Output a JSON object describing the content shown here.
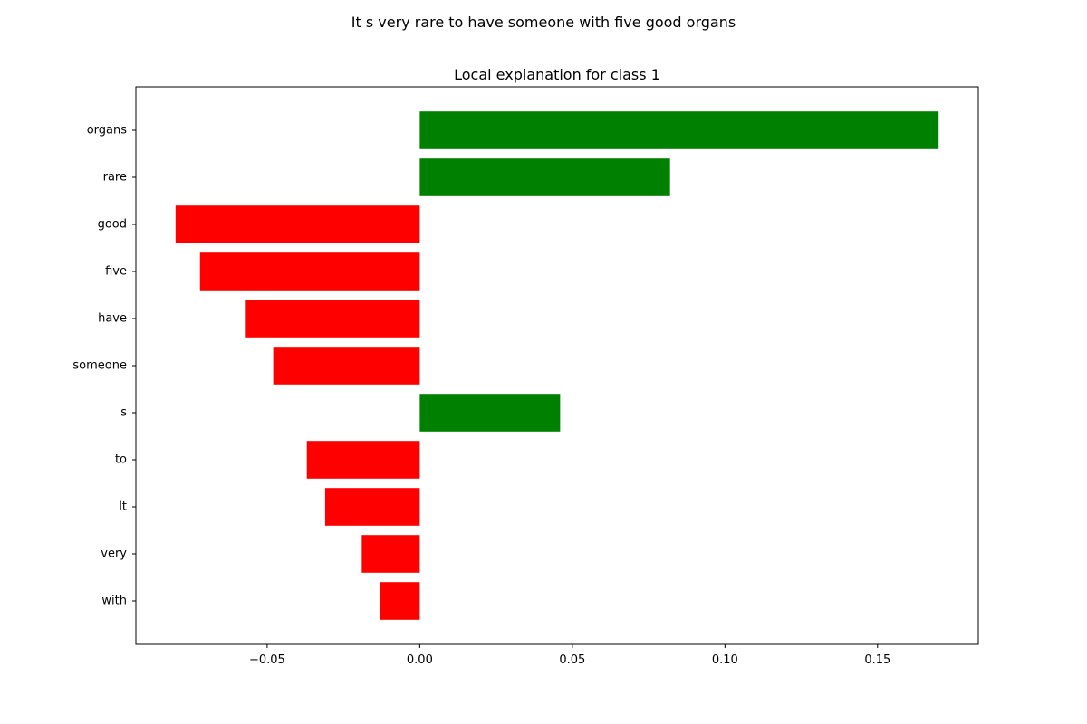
{
  "figure": {
    "suptitle": "It s very rare to have someone with five good organs"
  },
  "chart_data": {
    "type": "bar",
    "orientation": "horizontal",
    "title": "Local explanation for class 1",
    "xlabel": "",
    "ylabel": "",
    "xlim": [
      -0.093,
      0.183
    ],
    "grid": false,
    "legend": "none",
    "positive_color": "#008000",
    "negative_color": "#ff0000",
    "xticks": [
      -0.05,
      0.0,
      0.05,
      0.1,
      0.15
    ],
    "xtick_labels": [
      "−0.05",
      "0.00",
      "0.05",
      "0.10",
      "0.15"
    ],
    "categories": [
      "organs",
      "rare",
      "good",
      "five",
      "have",
      "someone",
      "s",
      "to",
      "It",
      "very",
      "with"
    ],
    "values": [
      0.17,
      0.082,
      -0.08,
      -0.072,
      -0.057,
      -0.048,
      0.046,
      -0.037,
      -0.031,
      -0.019,
      -0.013
    ]
  }
}
